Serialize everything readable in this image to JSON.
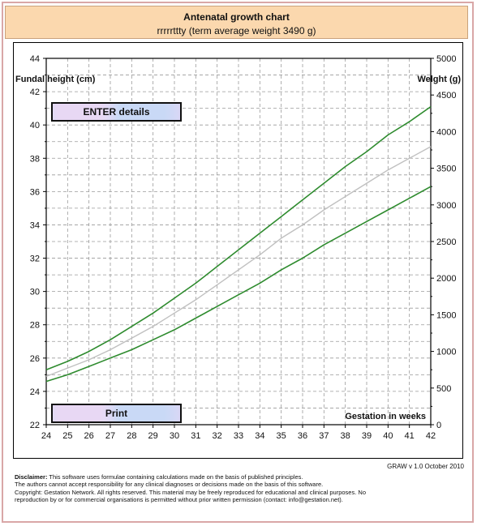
{
  "header": {
    "title": "Antenatal growth chart",
    "subtitle": "rrrrrttty (term average weight 3490 g)"
  },
  "buttons": {
    "enter_label": "ENTER details",
    "print_label": "Print"
  },
  "footer": {
    "version": "GRAW v 1.0  October 2010",
    "disclaimer_title": "Disclaimer:",
    "disclaimer_l1": " This software uses formulae containing calculations made on the basis of published principles.",
    "disclaimer_l2": "The authors cannot accept responsibility for any clinical diagnoses or decisions made on the basis of this software.",
    "disclaimer_l3": "Copyright: Gestation Network. All rights reserved. This material may be freely reproduced for educational and clinical purposes. No",
    "disclaimer_l4": "reproduction by or for commercial organisations is permitted without prior written permission  (contact:  info@gestation.net)."
  },
  "chart_data": {
    "type": "line",
    "ylabel_left": "Fundal height (cm)",
    "ylabel_right": "Weight (g)",
    "xlabel": "Gestation in weeks",
    "xlim": [
      24,
      42
    ],
    "ylim_left": [
      22,
      44
    ],
    "ylim_right": [
      0,
      5000
    ],
    "x_ticks": [
      24,
      25,
      26,
      27,
      28,
      29,
      30,
      31,
      32,
      33,
      34,
      35,
      36,
      37,
      38,
      39,
      40,
      41,
      42
    ],
    "y_left_ticks": [
      22,
      24,
      26,
      28,
      30,
      32,
      34,
      36,
      38,
      40,
      42,
      44
    ],
    "y_right_ticks": [
      0,
      500,
      1000,
      1500,
      2000,
      2500,
      3000,
      3500,
      4000,
      4500,
      5000
    ],
    "grid": true,
    "colors": {
      "centiles": "#2e8b2e",
      "median": "#c0c0c0"
    },
    "series": [
      {
        "x": [
          24,
          25,
          26,
          27,
          28,
          29,
          30,
          31,
          32,
          33,
          34,
          35,
          36,
          37,
          38,
          39,
          40,
          41,
          42
        ],
        "y": [
          25.3,
          25.8,
          26.4,
          27.1,
          27.9,
          28.7,
          29.6,
          30.5,
          31.5,
          32.5,
          33.5,
          34.5,
          35.5,
          36.5,
          37.5,
          38.4,
          39.4,
          40.2,
          41.1
        ]
      },
      {
        "x": [
          24,
          25,
          26,
          27,
          28,
          29,
          30,
          31,
          32,
          33,
          34,
          35,
          36,
          37,
          38,
          39,
          40,
          41,
          42
        ],
        "y": [
          24.9,
          25.4,
          25.9,
          26.5,
          27.2,
          27.9,
          28.7,
          29.5,
          30.4,
          31.3,
          32.2,
          33.2,
          34.0,
          34.9,
          35.7,
          36.5,
          37.3,
          38.0,
          38.7
        ]
      },
      {
        "x": [
          24,
          25,
          26,
          27,
          28,
          29,
          30,
          31,
          32,
          33,
          34,
          35,
          36,
          37,
          38,
          39,
          40,
          41,
          42
        ],
        "y": [
          24.6,
          25.0,
          25.5,
          26.0,
          26.5,
          27.1,
          27.7,
          28.4,
          29.1,
          29.8,
          30.5,
          31.3,
          32.0,
          32.8,
          33.5,
          34.2,
          34.9,
          35.6,
          36.3
        ]
      }
    ]
  }
}
